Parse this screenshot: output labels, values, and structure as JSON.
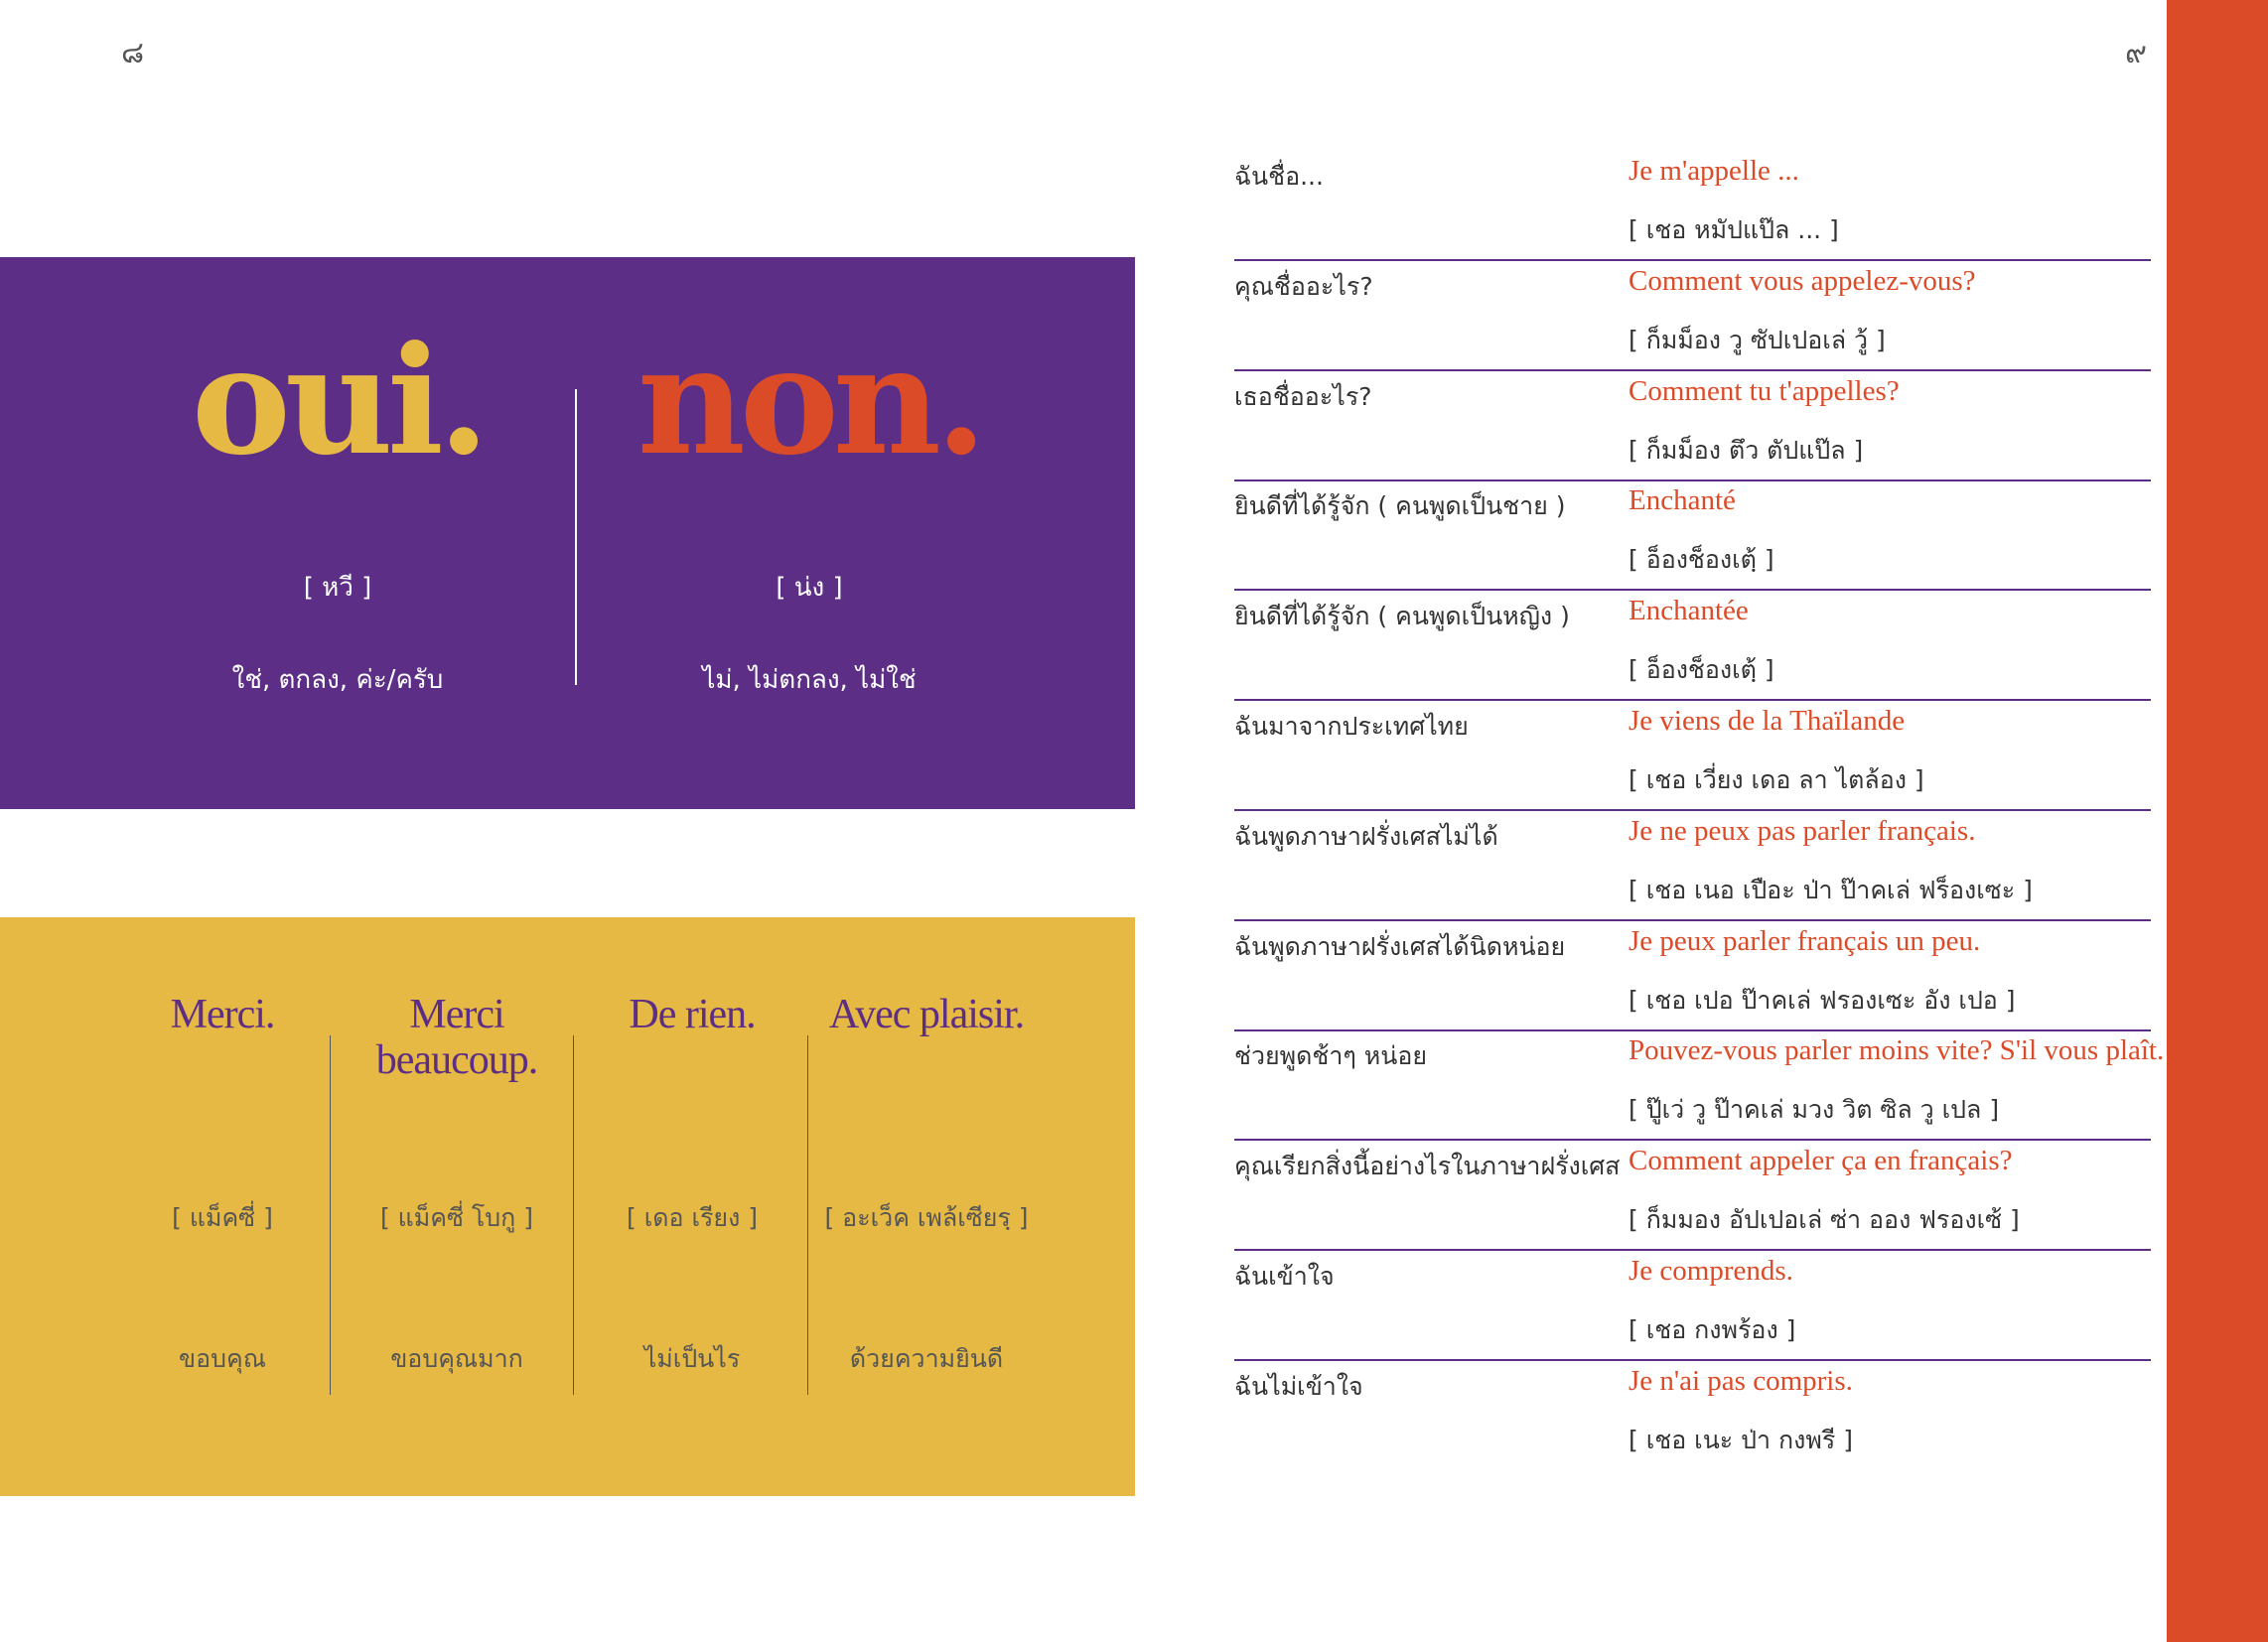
{
  "colors": {
    "purple": "#5c2e85",
    "yellow": "#e6b844",
    "orange": "#dc4b28"
  },
  "page_numbers": {
    "left": "๘",
    "right": "๙"
  },
  "yes_no": [
    {
      "word": "oui.",
      "pronunciation": "[ หวี ]",
      "meaning": "ใช่, ตกลง, ค่ะ/ครับ",
      "color": "#e6b844"
    },
    {
      "word": "non.",
      "pronunciation": "[ น่ง ]",
      "meaning": "ไม่, ไม่ตกลง, ไม่ใช่",
      "color": "#dc4b28"
    }
  ],
  "thanks": [
    {
      "word": "Merci.",
      "pronunciation": "[ แม็คซี่ ]",
      "meaning": "ขอบคุณ"
    },
    {
      "word": "Merci beaucoup.",
      "pronunciation": "[ แม็คซี่ โบกู ]",
      "meaning": "ขอบคุณมาก"
    },
    {
      "word": "De rien.",
      "pronunciation": "[ เดอ เรียง ]",
      "meaning": "ไม่เป็นไร"
    },
    {
      "word": "Avec plaisir.",
      "pronunciation": "[ อะเว็ค เพล้เซียรฺ ]",
      "meaning": "ด้วยความยินดี"
    }
  ],
  "phrases": [
    {
      "thai": "ฉันชื่อ...",
      "french": "Je m'appelle ...",
      "pronunciation": "[ เชอ หมัปแป๊ล ... ]"
    },
    {
      "thai": "คุณชื่ออะไร?",
      "french": "Comment vous appelez-vous?",
      "pronunciation": "[ ก็มม็อง วู ซัปเปอเล่ วู้ ]"
    },
    {
      "thai": "เธอชื่ออะไร?",
      "french": "Comment tu t'appelles?",
      "pronunciation": "[ ก็มม็อง ตึว ตัปแป๊ล ]"
    },
    {
      "thai": "ยินดีที่ได้รู้จัก ( คนพูดเป็นชาย )",
      "french": "Enchanté",
      "pronunciation": "[ อ็องช็องเตฺ้ ]"
    },
    {
      "thai": "ยินดีที่ได้รู้จัก ( คนพูดเป็นหญิง )",
      "french": "Enchantée",
      "pronunciation": "[ อ็องช็องเตฺ้ ]"
    },
    {
      "thai": "ฉันมาจากประเทศไทย",
      "french": "Je viens de la Thaïlande",
      "pronunciation": "[ เชอ เวี่ยง เดอ ลา ไตล้อง ]"
    },
    {
      "thai": "ฉันพูดภาษาฝรั่งเศสไม่ได้",
      "french": "Je ne peux pas parler français.",
      "pronunciation": "[ เชอ เนอ เปือะ ป่า ป๊าคเล่ ฟร็องเซะ ]"
    },
    {
      "thai": "ฉันพูดภาษาฝรั่งเศสได้นิดหน่อย",
      "french": "Je peux parler français un peu.",
      "pronunciation": "[ เชอ เปอ ป๊าคเล่ ฟรองเซะ อัง เปอ ]"
    },
    {
      "thai": "ช่วยพูดช้าๆ หน่อย",
      "french": "Pouvez-vous parler moins vite? S'il vous plaît.",
      "pronunciation": "[ ปู๊เว่ วู ป๊าคเล่ มวง วิต ซิล วู เปล ]"
    },
    {
      "thai": "คุณเรียกสิ่งนี้อย่างไรในภาษาฝรั่งเศส",
      "french": "Comment appeler ça en français?",
      "pronunciation": "[ ก็มมอง อัปเปอเล่ ซ่า ออง ฟรองเซ้ ]"
    },
    {
      "thai": "ฉันเข้าใจ",
      "french": "Je comprends.",
      "pronunciation": "[ เชอ กงพร้อง ]"
    },
    {
      "thai": "ฉันไม่เข้าใจ",
      "french": "Je n'ai pas compris.",
      "pronunciation": "[ เชอ เนะ ป่า กงพรี ]"
    }
  ]
}
